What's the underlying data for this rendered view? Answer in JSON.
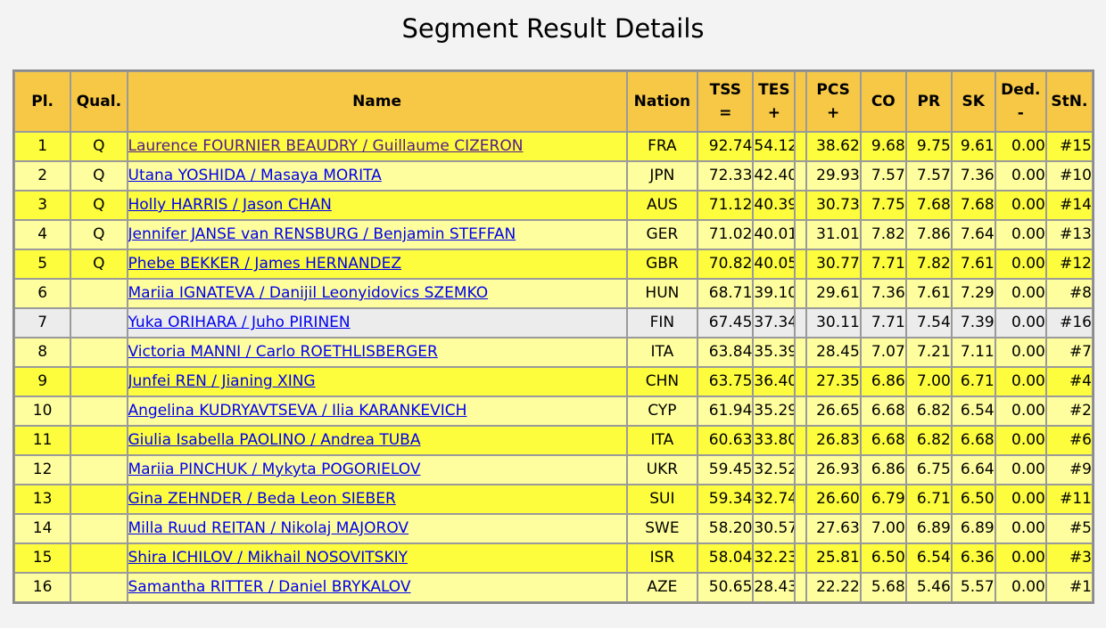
{
  "page": {
    "title": "Segment Result Details"
  },
  "table": {
    "headers": {
      "pl": "Pl.",
      "qual": "Qual.",
      "name": "Name",
      "nation": "Nation",
      "tss": "TSS",
      "tss_sub": "=",
      "tes": "TES",
      "tes_sub": "+",
      "pcs": "PCS",
      "pcs_sub": "+",
      "co": "CO",
      "pr": "PR",
      "sk": "SK",
      "ded": "Ded.",
      "ded_sub": "-",
      "stn": "StN."
    },
    "rows": [
      {
        "pl": "1",
        "qual": "Q",
        "name": "Laurence FOURNIER BEAUDRY / Guillaume CIZERON",
        "nation": "FRA",
        "tss": "92.74",
        "tes": "54.12",
        "pcs": "38.62",
        "co": "9.68",
        "pr": "9.75",
        "sk": "9.61",
        "ded": "0.00",
        "stn": "#15"
      },
      {
        "pl": "2",
        "qual": "Q",
        "name": "Utana YOSHIDA / Masaya MORITA",
        "nation": "JPN",
        "tss": "72.33",
        "tes": "42.40",
        "pcs": "29.93",
        "co": "7.57",
        "pr": "7.57",
        "sk": "7.36",
        "ded": "0.00",
        "stn": "#10"
      },
      {
        "pl": "3",
        "qual": "Q",
        "name": "Holly HARRIS / Jason CHAN",
        "nation": "AUS",
        "tss": "71.12",
        "tes": "40.39",
        "pcs": "30.73",
        "co": "7.75",
        "pr": "7.68",
        "sk": "7.68",
        "ded": "0.00",
        "stn": "#14"
      },
      {
        "pl": "4",
        "qual": "Q",
        "name": "Jennifer JANSE van RENSBURG / Benjamin STEFFAN",
        "nation": "GER",
        "tss": "71.02",
        "tes": "40.01",
        "pcs": "31.01",
        "co": "7.82",
        "pr": "7.86",
        "sk": "7.64",
        "ded": "0.00",
        "stn": "#13"
      },
      {
        "pl": "5",
        "qual": "Q",
        "name": "Phebe BEKKER / James HERNANDEZ",
        "nation": "GBR",
        "tss": "70.82",
        "tes": "40.05",
        "pcs": "30.77",
        "co": "7.71",
        "pr": "7.82",
        "sk": "7.61",
        "ded": "0.00",
        "stn": "#12"
      },
      {
        "pl": "6",
        "qual": "",
        "name": "Mariia IGNATEVA / Danijil Leonyidovics SZEMKO",
        "nation": "HUN",
        "tss": "68.71",
        "tes": "39.10",
        "pcs": "29.61",
        "co": "7.36",
        "pr": "7.61",
        "sk": "7.29",
        "ded": "0.00",
        "stn": "#8"
      },
      {
        "pl": "7",
        "qual": "",
        "name": "Yuka ORIHARA / Juho PIRINEN",
        "nation": "FIN",
        "tss": "67.45",
        "tes": "37.34",
        "pcs": "30.11",
        "co": "7.71",
        "pr": "7.54",
        "sk": "7.39",
        "ded": "0.00",
        "stn": "#16"
      },
      {
        "pl": "8",
        "qual": "",
        "name": "Victoria MANNI / Carlo ROETHLISBERGER",
        "nation": "ITA",
        "tss": "63.84",
        "tes": "35.39",
        "pcs": "28.45",
        "co": "7.07",
        "pr": "7.21",
        "sk": "7.11",
        "ded": "0.00",
        "stn": "#7"
      },
      {
        "pl": "9",
        "qual": "",
        "name": "Junfei REN / Jianing XING",
        "nation": "CHN",
        "tss": "63.75",
        "tes": "36.40",
        "pcs": "27.35",
        "co": "6.86",
        "pr": "7.00",
        "sk": "6.71",
        "ded": "0.00",
        "stn": "#4"
      },
      {
        "pl": "10",
        "qual": "",
        "name": "Angelina KUDRYAVTSEVA / Ilia KARANKEVICH",
        "nation": "CYP",
        "tss": "61.94",
        "tes": "35.29",
        "pcs": "26.65",
        "co": "6.68",
        "pr": "6.82",
        "sk": "6.54",
        "ded": "0.00",
        "stn": "#2"
      },
      {
        "pl": "11",
        "qual": "",
        "name": "Giulia Isabella PAOLINO / Andrea TUBA",
        "nation": "ITA",
        "tss": "60.63",
        "tes": "33.80",
        "pcs": "26.83",
        "co": "6.68",
        "pr": "6.82",
        "sk": "6.68",
        "ded": "0.00",
        "stn": "#6"
      },
      {
        "pl": "12",
        "qual": "",
        "name": "Mariia PINCHUK / Mykyta POGORIELOV",
        "nation": "UKR",
        "tss": "59.45",
        "tes": "32.52",
        "pcs": "26.93",
        "co": "6.86",
        "pr": "6.75",
        "sk": "6.64",
        "ded": "0.00",
        "stn": "#9"
      },
      {
        "pl": "13",
        "qual": "",
        "name": "Gina ZEHNDER / Beda Leon SIEBER",
        "nation": "SUI",
        "tss": "59.34",
        "tes": "32.74",
        "pcs": "26.60",
        "co": "6.79",
        "pr": "6.71",
        "sk": "6.50",
        "ded": "0.00",
        "stn": "#11"
      },
      {
        "pl": "14",
        "qual": "",
        "name": "Milla Ruud REITAN / Nikolaj MAJOROV",
        "nation": "SWE",
        "tss": "58.20",
        "tes": "30.57",
        "pcs": "27.63",
        "co": "7.00",
        "pr": "6.89",
        "sk": "6.89",
        "ded": "0.00",
        "stn": "#5"
      },
      {
        "pl": "15",
        "qual": "",
        "name": "Shira ICHILOV / Mikhail NOSOVITSKIY",
        "nation": "ISR",
        "tss": "58.04",
        "tes": "32.23",
        "pcs": "25.81",
        "co": "6.50",
        "pr": "6.54",
        "sk": "6.36",
        "ded": "0.00",
        "stn": "#3"
      },
      {
        "pl": "16",
        "qual": "",
        "name": "Samantha RITTER / Daniel BRYKALOV",
        "nation": "AZE",
        "tss": "50.65",
        "tes": "28.43",
        "pcs": "22.22",
        "co": "5.68",
        "pr": "5.46",
        "sk": "5.57",
        "ded": "0.00",
        "stn": "#1"
      }
    ]
  },
  "colors": {
    "header_bg": "#f7c846",
    "row_odd_bg": "#fdfd3d",
    "row_even_bg": "#fefe9e",
    "row_highlight_bg": "#ececec",
    "link": "#0000ee",
    "link_visited": "#551a8b"
  }
}
